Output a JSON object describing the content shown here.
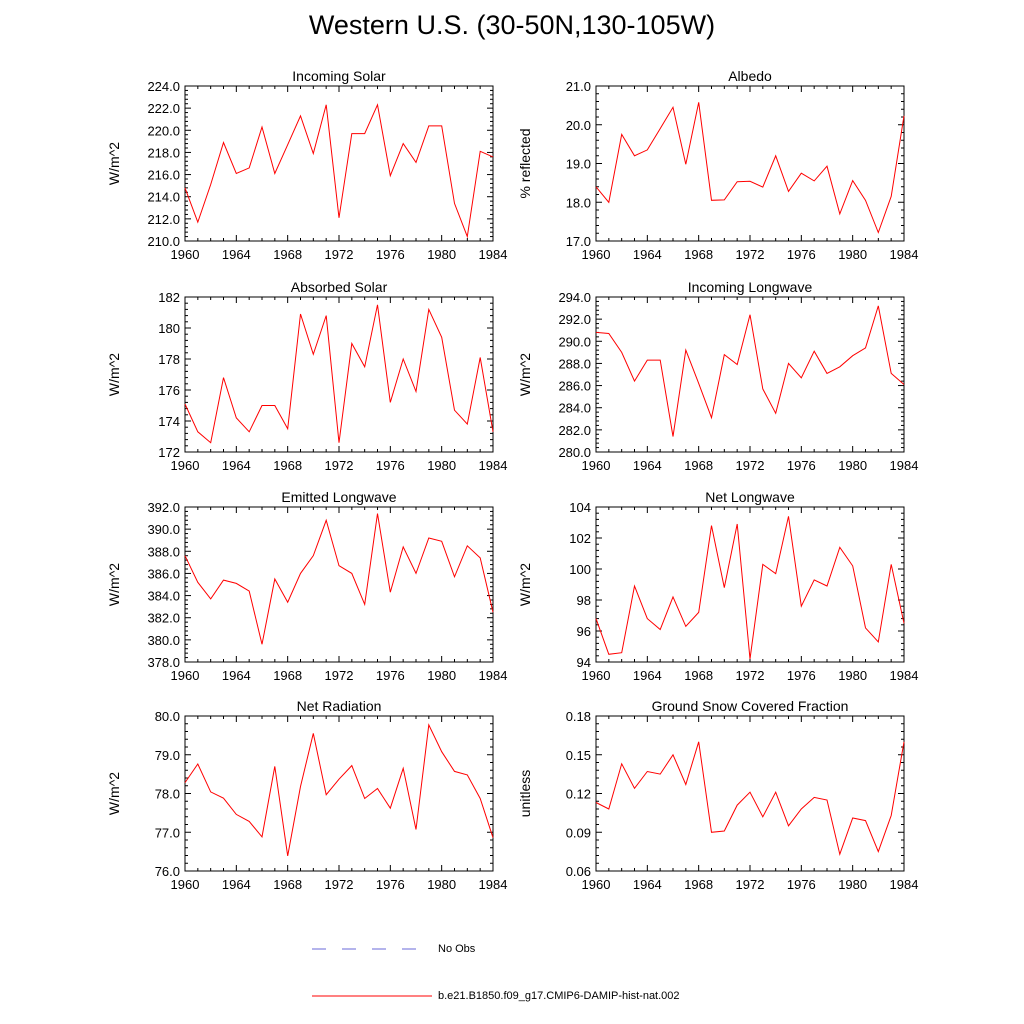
{
  "title": "Western U.S. (30-50N,130-105W)",
  "line_color": "#ff0000",
  "obs_color": "#6a6ad8",
  "legend": [
    {
      "label": "No Obs",
      "style": "dashed"
    },
    {
      "label": "b.e21.B1850.f09_g17.CMIP6-DAMIP-hist-nat.002",
      "style": "solid"
    }
  ],
  "chart_data": [
    {
      "type": "line",
      "title": "Incoming Solar",
      "ylabel": "W/m^2",
      "xlim": [
        1960,
        1984
      ],
      "ylim": [
        210,
        224
      ],
      "xticks": [
        "1960",
        "1964",
        "1968",
        "1972",
        "1976",
        "1980",
        "1984"
      ],
      "yticks": [
        "210.0",
        "212.0",
        "214.0",
        "216.0",
        "218.0",
        "220.0",
        "222.0",
        "224.0"
      ],
      "x": [
        1960,
        1961,
        1962,
        1963,
        1964,
        1965,
        1966,
        1967,
        1968,
        1969,
        1970,
        1971,
        1972,
        1973,
        1974,
        1975,
        1976,
        1977,
        1978,
        1979,
        1980,
        1981,
        1982,
        1983,
        1984
      ],
      "values": [
        214.8,
        211.7,
        215.1,
        218.9,
        216.1,
        216.6,
        220.3,
        216.1,
        218.7,
        221.3,
        217.9,
        222.3,
        212.1,
        219.7,
        219.7,
        222.3,
        215.9,
        218.8,
        217.1,
        220.4,
        220.4,
        213.4,
        210.4,
        218.1,
        217.6
      ]
    },
    {
      "type": "line",
      "title": "Albedo",
      "ylabel": "% reflected",
      "xlim": [
        1960,
        1984
      ],
      "ylim": [
        17,
        21
      ],
      "xticks": [
        "1960",
        "1964",
        "1968",
        "1972",
        "1976",
        "1980",
        "1984"
      ],
      "yticks": [
        "17.0",
        "18.0",
        "19.0",
        "20.0",
        "21.0"
      ],
      "x": [
        1960,
        1961,
        1962,
        1963,
        1964,
        1965,
        1966,
        1967,
        1968,
        1969,
        1970,
        1971,
        1972,
        1973,
        1974,
        1975,
        1976,
        1977,
        1978,
        1979,
        1980,
        1981,
        1982,
        1983,
        1984
      ],
      "values": [
        18.4,
        18.0,
        19.75,
        19.2,
        19.35,
        19.9,
        20.45,
        18.98,
        20.58,
        18.05,
        18.06,
        18.53,
        18.54,
        18.39,
        19.2,
        18.28,
        18.75,
        18.55,
        18.93,
        17.7,
        18.56,
        18.05,
        17.22,
        18.15,
        20.23
      ]
    },
    {
      "type": "line",
      "title": "Absorbed Solar",
      "ylabel": "W/m^2",
      "xlim": [
        1960,
        1984
      ],
      "ylim": [
        172,
        182
      ],
      "xticks": [
        "1960",
        "1964",
        "1968",
        "1972",
        "1976",
        "1980",
        "1984"
      ],
      "yticks": [
        "172",
        "174",
        "176",
        "178",
        "180",
        "182"
      ],
      "x": [
        1960,
        1961,
        1962,
        1963,
        1964,
        1965,
        1966,
        1967,
        1968,
        1969,
        1970,
        1971,
        1972,
        1973,
        1974,
        1975,
        1976,
        1977,
        1978,
        1979,
        1980,
        1981,
        1982,
        1983,
        1984
      ],
      "values": [
        175.1,
        173.3,
        172.6,
        176.8,
        174.2,
        173.3,
        175.0,
        175.0,
        173.5,
        180.9,
        178.3,
        180.8,
        172.6,
        179.0,
        177.5,
        181.5,
        175.2,
        178.0,
        175.9,
        181.2,
        179.4,
        174.7,
        173.8,
        178.1,
        173.3
      ]
    },
    {
      "type": "line",
      "title": "Incoming Longwave",
      "ylabel": "W/m^2",
      "xlim": [
        1960,
        1984
      ],
      "ylim": [
        280,
        294
      ],
      "xticks": [
        "1960",
        "1964",
        "1968",
        "1972",
        "1976",
        "1980",
        "1984"
      ],
      "yticks": [
        "280.0",
        "282.0",
        "284.0",
        "286.0",
        "288.0",
        "290.0",
        "292.0",
        "294.0"
      ],
      "x": [
        1960,
        1961,
        1962,
        1963,
        1964,
        1965,
        1966,
        1967,
        1968,
        1969,
        1970,
        1971,
        1972,
        1973,
        1974,
        1975,
        1976,
        1977,
        1978,
        1979,
        1980,
        1981,
        1982,
        1983,
        1984
      ],
      "values": [
        290.8,
        290.7,
        289.0,
        286.4,
        288.3,
        288.3,
        281.4,
        289.2,
        286.2,
        283.1,
        288.8,
        287.9,
        292.4,
        285.7,
        283.5,
        288.0,
        286.7,
        289.1,
        287.1,
        287.7,
        288.7,
        289.4,
        293.2,
        287.1,
        286.1
      ]
    },
    {
      "type": "line",
      "title": "Emitted Longwave",
      "ylabel": "W/m^2",
      "xlim": [
        1960,
        1984
      ],
      "ylim": [
        378,
        392
      ],
      "xticks": [
        "1960",
        "1964",
        "1968",
        "1972",
        "1976",
        "1980",
        "1984"
      ],
      "yticks": [
        "378.0",
        "380.0",
        "382.0",
        "384.0",
        "386.0",
        "388.0",
        "390.0",
        "392.0"
      ],
      "x": [
        1960,
        1961,
        1962,
        1963,
        1964,
        1965,
        1966,
        1967,
        1968,
        1969,
        1970,
        1971,
        1972,
        1973,
        1974,
        1975,
        1976,
        1977,
        1978,
        1979,
        1980,
        1981,
        1982,
        1983,
        1984
      ],
      "values": [
        387.6,
        385.2,
        383.7,
        385.4,
        385.1,
        384.4,
        379.6,
        385.5,
        383.4,
        386.0,
        387.6,
        390.8,
        386.7,
        386.0,
        383.2,
        391.4,
        384.3,
        388.4,
        386.0,
        389.2,
        388.9,
        385.7,
        388.5,
        387.4,
        382.5
      ]
    },
    {
      "type": "line",
      "title": "Net Longwave",
      "ylabel": "W/m^2",
      "xlim": [
        1960,
        1984
      ],
      "ylim": [
        94,
        104
      ],
      "xticks": [
        "1960",
        "1964",
        "1968",
        "1972",
        "1976",
        "1980",
        "1984"
      ],
      "yticks": [
        "94",
        "96",
        "98",
        "100",
        "102",
        "104"
      ],
      "x": [
        1960,
        1961,
        1962,
        1963,
        1964,
        1965,
        1966,
        1967,
        1968,
        1969,
        1970,
        1971,
        1972,
        1973,
        1974,
        1975,
        1976,
        1977,
        1978,
        1979,
        1980,
        1981,
        1982,
        1983,
        1984
      ],
      "values": [
        96.8,
        94.5,
        94.6,
        98.9,
        96.8,
        96.1,
        98.2,
        96.3,
        97.2,
        102.8,
        98.8,
        102.9,
        94.2,
        100.3,
        99.7,
        103.4,
        97.6,
        99.3,
        98.9,
        101.4,
        100.2,
        96.2,
        95.3,
        100.3,
        96.5
      ]
    },
    {
      "type": "line",
      "title": "Net Radiation",
      "ylabel": "W/m^2",
      "xlim": [
        1960,
        1984
      ],
      "ylim": [
        76,
        80
      ],
      "xticks": [
        "1960",
        "1964",
        "1968",
        "1972",
        "1976",
        "1980",
        "1984"
      ],
      "yticks": [
        "76.0",
        "77.0",
        "78.0",
        "79.0",
        "80.0"
      ],
      "x": [
        1960,
        1961,
        1962,
        1963,
        1964,
        1965,
        1966,
        1967,
        1968,
        1969,
        1970,
        1971,
        1972,
        1973,
        1974,
        1975,
        1976,
        1977,
        1978,
        1979,
        1980,
        1981,
        1982,
        1983,
        1984
      ],
      "values": [
        78.28,
        78.76,
        78.04,
        77.88,
        77.46,
        77.28,
        76.88,
        78.7,
        76.39,
        78.18,
        79.55,
        77.97,
        78.37,
        78.72,
        77.87,
        78.13,
        77.62,
        78.65,
        77.07,
        79.77,
        79.08,
        78.57,
        78.48,
        77.87,
        76.86
      ]
    },
    {
      "type": "line",
      "title": "Ground Snow Covered Fraction",
      "ylabel": "unitless",
      "xlim": [
        1960,
        1984
      ],
      "ylim": [
        0.06,
        0.18
      ],
      "xticks": [
        "1960",
        "1964",
        "1968",
        "1972",
        "1976",
        "1980",
        "1984"
      ],
      "yticks": [
        "0.06",
        "0.09",
        "0.12",
        "0.15",
        "0.18"
      ],
      "x": [
        1960,
        1961,
        1962,
        1963,
        1964,
        1965,
        1966,
        1967,
        1968,
        1969,
        1970,
        1971,
        1972,
        1973,
        1974,
        1975,
        1976,
        1977,
        1978,
        1979,
        1980,
        1981,
        1982,
        1983,
        1984
      ],
      "values": [
        0.113,
        0.108,
        0.143,
        0.124,
        0.137,
        0.135,
        0.15,
        0.127,
        0.16,
        0.09,
        0.091,
        0.111,
        0.121,
        0.102,
        0.121,
        0.095,
        0.108,
        0.117,
        0.115,
        0.073,
        0.101,
        0.099,
        0.075,
        0.103,
        0.16
      ]
    }
  ]
}
